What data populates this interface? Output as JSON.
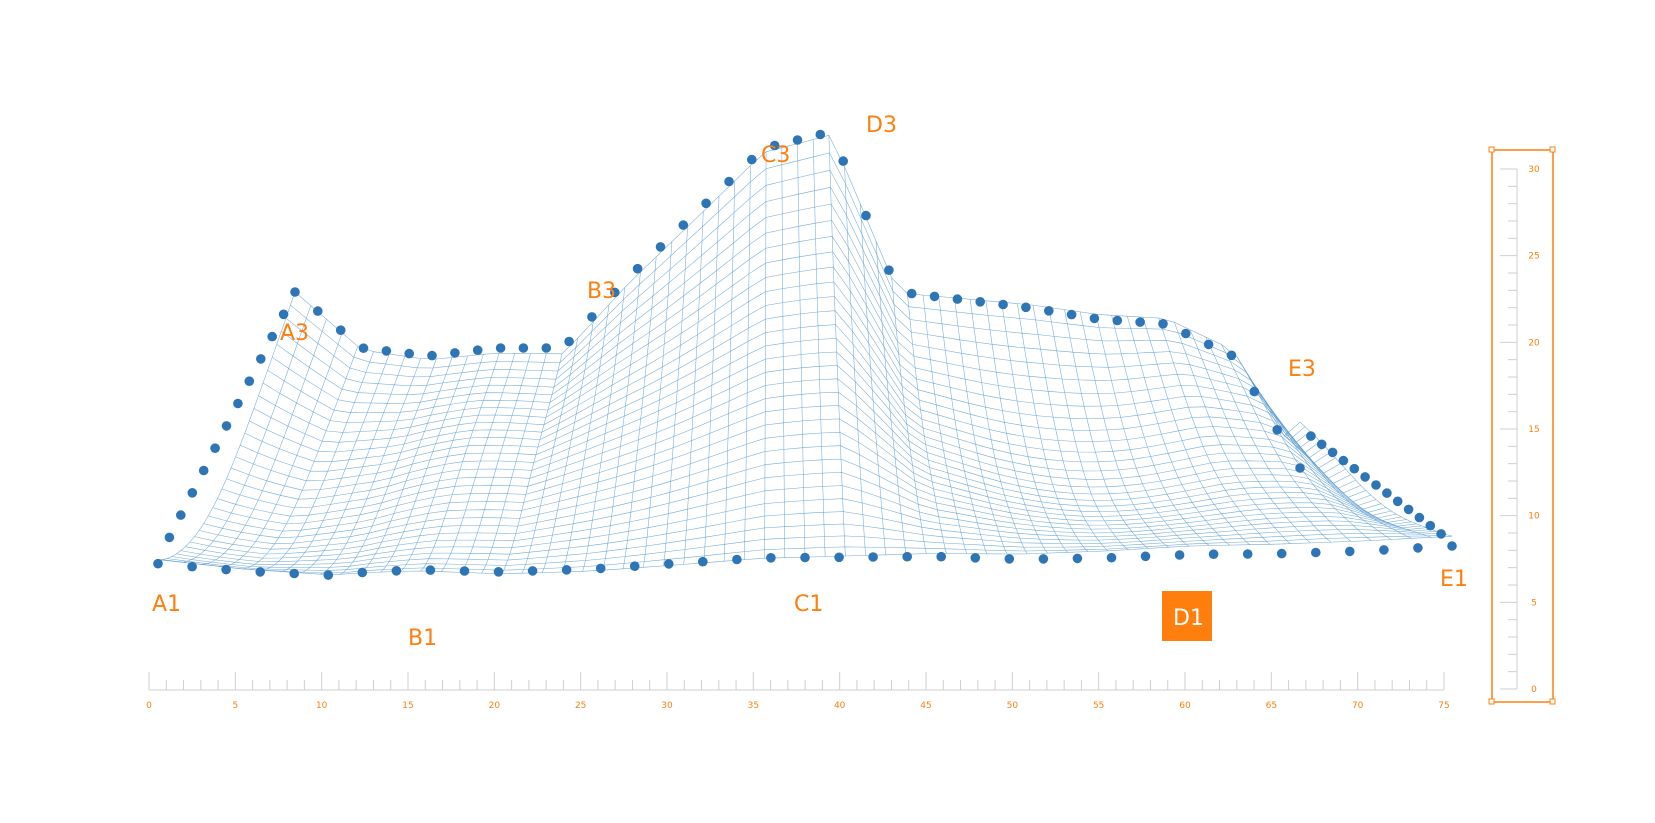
{
  "chart_data": {
    "type": "surface",
    "title": "",
    "xlabel": "",
    "ylabel": "",
    "x_axis": {
      "min": 0,
      "max": 75,
      "major_step": 5,
      "ticks": [
        0,
        5,
        10,
        15,
        20,
        25,
        30,
        35,
        40,
        45,
        50,
        55,
        60,
        65,
        70,
        75
      ]
    },
    "z_scale": {
      "min": 0,
      "max": 30,
      "major_step": 5,
      "ticks": [
        0,
        5,
        10,
        15,
        20,
        25,
        30
      ]
    },
    "rows": [
      "1",
      "3"
    ],
    "columns": [
      "A",
      "B",
      "C",
      "D",
      "E"
    ],
    "corner_labels": [
      "A1",
      "B1",
      "C1",
      "D1",
      "E1",
      "A3",
      "B3",
      "C3",
      "D3",
      "E3"
    ],
    "highlighted_label": "D1",
    "front_edge": [
      {
        "x": 0,
        "y": 7.5
      },
      {
        "x": 5,
        "y": 6
      },
      {
        "x": 10,
        "y": 5
      },
      {
        "x": 15,
        "y": 5.6
      },
      {
        "x": 20,
        "y": 5.3
      },
      {
        "x": 25,
        "y": 5.7
      },
      {
        "x": 30,
        "y": 6.5
      },
      {
        "x": 35,
        "y": 7.3
      },
      {
        "x": 40,
        "y": 7.4
      },
      {
        "x": 45,
        "y": 7.5
      },
      {
        "x": 50,
        "y": 7.1
      },
      {
        "x": 55,
        "y": 7.3
      },
      {
        "x": 60,
        "y": 7.8
      },
      {
        "x": 65,
        "y": 7.9
      },
      {
        "x": 70,
        "y": 8.3
      },
      {
        "x": 75,
        "y": 9
      }
    ],
    "back_edge": [
      {
        "x": 0,
        "y": 20
      },
      {
        "x": 5,
        "y": 16.5
      },
      {
        "x": 10,
        "y": 16
      },
      {
        "x": 15,
        "y": 16.5
      },
      {
        "x": 20,
        "y": 16.5
      },
      {
        "x": 25,
        "y": 21
      },
      {
        "x": 30,
        "y": 25
      },
      {
        "x": 35,
        "y": 29
      },
      {
        "x": 40,
        "y": 30
      },
      {
        "x": 45,
        "y": 20
      },
      {
        "x": 50,
        "y": 19.5
      },
      {
        "x": 55,
        "y": 19
      },
      {
        "x": 60,
        "y": 18.3
      },
      {
        "x": 65,
        "y": 18
      },
      {
        "x": 70,
        "y": 16
      },
      {
        "x": 75,
        "y": 9
      }
    ],
    "grid": false,
    "legend": "none"
  },
  "colors": {
    "mesh": "#5b9bd0",
    "points": "#2e75b6",
    "accent": "#ff7f0e",
    "axis": "#cfcfcf"
  }
}
